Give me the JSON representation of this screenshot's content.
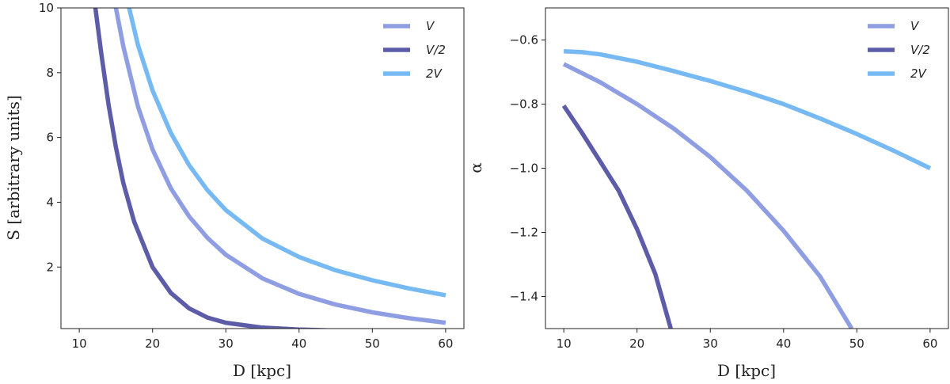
{
  "chart_data": [
    {
      "type": "line",
      "xlabel": "D [kpc]",
      "ylabel": "S [arbitrary units]",
      "xlim": [
        7.5,
        62.5
      ],
      "ylim": [
        0.1,
        10
      ],
      "xticks": [
        10,
        20,
        30,
        40,
        50,
        60
      ],
      "yticks": [
        2,
        4,
        6,
        8,
        10
      ],
      "legend_position": "top-right",
      "series": [
        {
          "name": "V",
          "color": "#8f9ee3",
          "x": [
            15,
            16,
            18,
            20,
            22.5,
            25,
            27.5,
            30,
            35,
            40,
            45,
            50,
            55,
            60
          ],
          "y": [
            10.0,
            8.82,
            6.96,
            5.63,
            4.43,
            3.56,
            2.9,
            2.38,
            1.65,
            1.17,
            0.84,
            0.6,
            0.42,
            0.28
          ]
        },
        {
          "name": "V/2",
          "color": "#5c5ca8",
          "x": [
            12.2,
            13,
            14,
            15,
            16,
            17.5,
            20,
            22.5,
            25,
            27.5,
            30,
            35,
            40,
            45,
            50,
            60
          ],
          "y": [
            10.0,
            8.6,
            7.0,
            5.7,
            4.6,
            3.4,
            2.0,
            1.2,
            0.72,
            0.44,
            0.28,
            0.13,
            0.07,
            0.04,
            0.03,
            0.02
          ]
        },
        {
          "name": "2V",
          "color": "#76b9f3",
          "x": [
            16.8,
            18,
            20,
            22.5,
            25,
            27.5,
            30,
            35,
            40,
            45,
            50,
            55,
            60
          ],
          "y": [
            10.0,
            8.86,
            7.45,
            6.14,
            5.14,
            4.37,
            3.76,
            2.88,
            2.31,
            1.9,
            1.59,
            1.34,
            1.13
          ]
        }
      ]
    },
    {
      "type": "line",
      "xlabel": "D [kpc]",
      "ylabel": "α",
      "xlim": [
        7.5,
        62.5
      ],
      "ylim": [
        -1.5,
        -0.5
      ],
      "xticks": [
        10,
        20,
        30,
        40,
        50,
        60
      ],
      "yticks": [
        -0.6,
        -0.8,
        -1.0,
        -1.2,
        -1.4
      ],
      "yticklabels": [
        "−0.6",
        "−0.8",
        "−1.0",
        "−1.2",
        "−1.4"
      ],
      "legend_position": "top-right",
      "series": [
        {
          "name": "V",
          "color": "#8f9ee3",
          "x": [
            10,
            15,
            20,
            25,
            30,
            35,
            40,
            45,
            49.3
          ],
          "y": [
            -0.675,
            -0.732,
            -0.8,
            -0.876,
            -0.965,
            -1.07,
            -1.195,
            -1.338,
            -1.5
          ]
        },
        {
          "name": "V/2",
          "color": "#5c5ca8",
          "x": [
            10,
            12.5,
            15,
            17.5,
            20,
            22.5,
            24.6
          ],
          "y": [
            -0.805,
            -0.89,
            -0.98,
            -1.07,
            -1.19,
            -1.33,
            -1.5
          ]
        },
        {
          "name": "2V",
          "color": "#76b9f3",
          "x": [
            10,
            12.5,
            15,
            20,
            25,
            30,
            35,
            40,
            45,
            50,
            55,
            60
          ],
          "y": [
            -0.635,
            -0.638,
            -0.645,
            -0.668,
            -0.697,
            -0.728,
            -0.762,
            -0.8,
            -0.845,
            -0.893,
            -0.945,
            -1.0
          ]
        }
      ]
    }
  ]
}
